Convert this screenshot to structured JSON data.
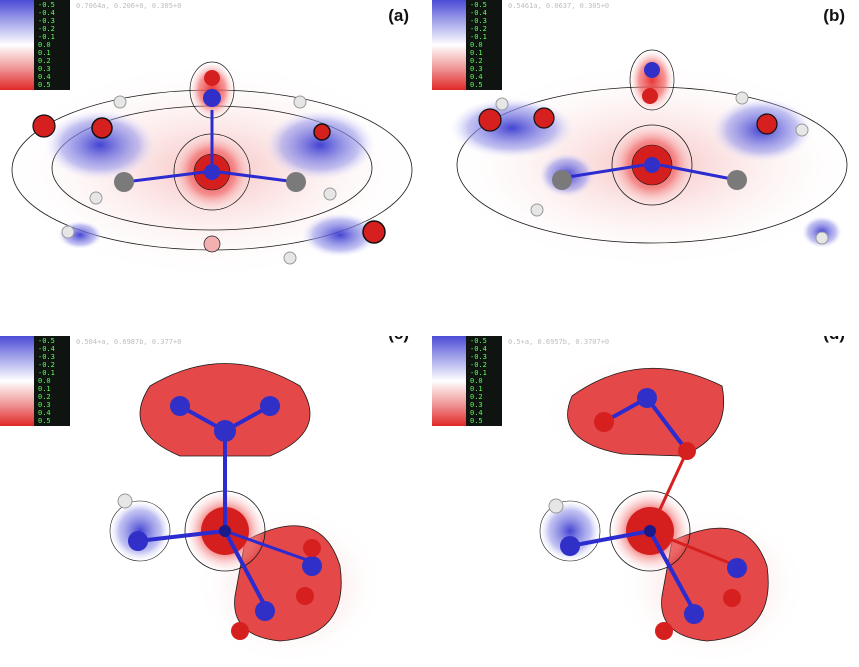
{
  "panels": [
    {
      "id": "a",
      "label": "(a)",
      "hud": "0.7064a, 0.206+0, 0.305+0"
    },
    {
      "id": "b",
      "label": "(b)",
      "hud": "0.5461a, 0.0637, 0.305+0"
    },
    {
      "id": "c",
      "label": "(c)",
      "hud": "0.504+a, 0.6987b, 0.377+0"
    },
    {
      "id": "d",
      "label": "(d)",
      "hud": "0.5+a, 0.6957b, 0.3707+0"
    }
  ],
  "legend_ticks": [
    "-0.5",
    "-0.4",
    "-0.3",
    "-0.2",
    "-0.1",
    "0.0",
    "0.1",
    "0.2",
    "0.3",
    "0.4",
    "0.5"
  ],
  "colors": {
    "negative": "#4b4bd6",
    "positive": "#e02828",
    "bond_blue": "#2b2bcf",
    "atom_grey": "#7a7a7a",
    "contour": "#1a1a1a"
  }
}
